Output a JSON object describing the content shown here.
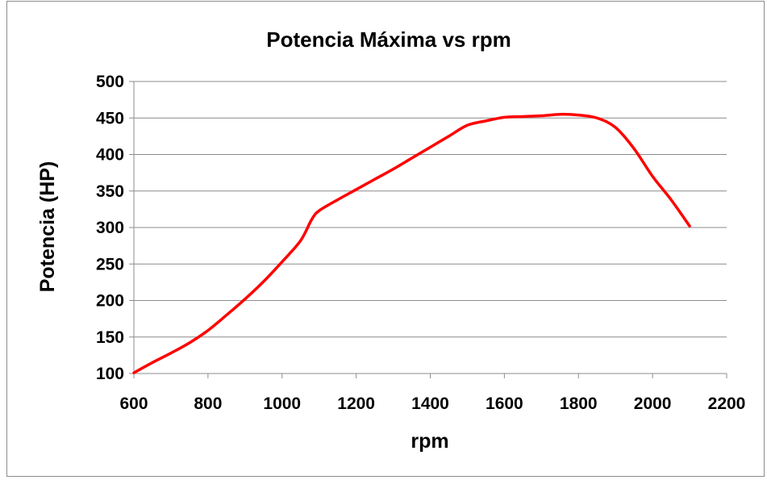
{
  "chart_data": {
    "type": "line",
    "title": "Potencia Máxima vs rpm",
    "xlabel": "rpm",
    "ylabel": "Potencia (HP)",
    "xlim": [
      600,
      2200
    ],
    "ylim": [
      100,
      500
    ],
    "xticks": [
      "600",
      "800",
      "1000",
      "1200",
      "1400",
      "1600",
      "1800",
      "2000",
      "2200"
    ],
    "yticks": [
      "100",
      "150",
      "200",
      "250",
      "300",
      "350",
      "400",
      "450",
      "500"
    ],
    "grid": "horizontal",
    "legend": "none",
    "series": [
      {
        "color": "#ff0000",
        "x": [
          600,
          650,
          700,
          750,
          800,
          850,
          900,
          950,
          1000,
          1050,
          1080,
          1100,
          1150,
          1200,
          1250,
          1300,
          1350,
          1400,
          1450,
          1500,
          1550,
          1600,
          1650,
          1700,
          1750,
          1800,
          1850,
          1900,
          1950,
          2000,
          2050,
          2100
        ],
        "y": [
          101,
          115,
          128,
          142,
          159,
          180,
          202,
          226,
          253,
          282,
          311,
          323,
          338,
          352,
          366,
          380,
          395,
          410,
          425,
          440,
          446,
          451,
          452,
          453,
          455,
          454,
          450,
          437,
          408,
          370,
          338,
          302
        ]
      }
    ]
  }
}
